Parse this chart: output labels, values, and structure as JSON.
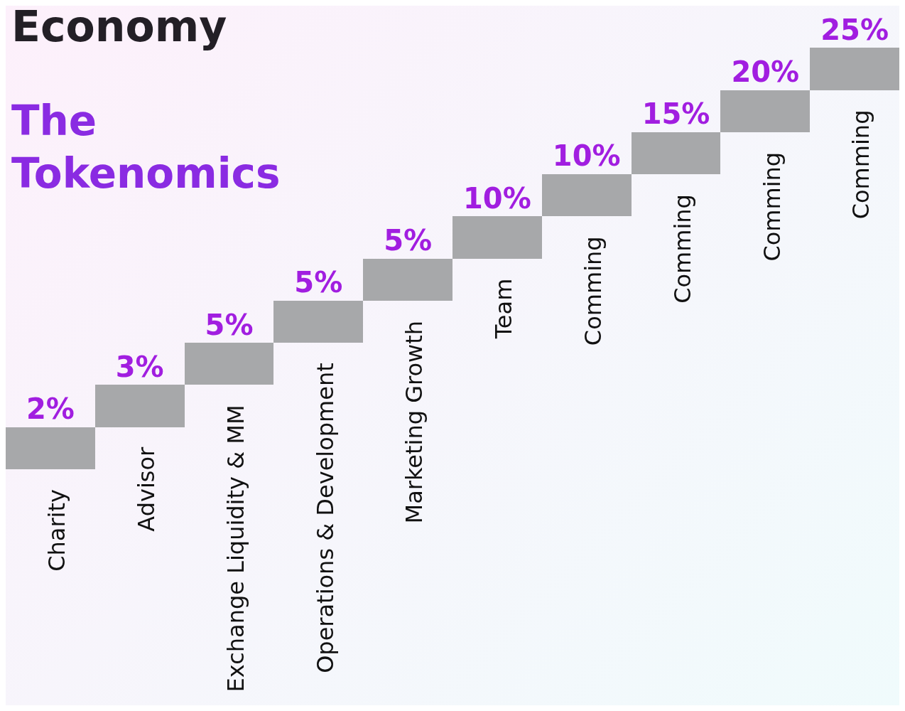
{
  "chart_data": {
    "type": "other",
    "title": "Economy",
    "subtitle": "The Tokenomics",
    "categories": [
      "Charity",
      "Advisor",
      "Exchange Liquidity & MM",
      "Operations & Development",
      "Marketing Growth",
      "Team",
      "Comming",
      "Comming",
      "Comming",
      "Comming"
    ],
    "values": [
      2,
      3,
      5,
      5,
      5,
      10,
      10,
      15,
      20,
      25
    ],
    "value_labels": [
      "2%",
      "3%",
      "5%",
      "5%",
      "5%",
      "10%",
      "10%",
      "15%",
      "20%",
      "25%"
    ],
    "color": "#a7a8aa"
  }
}
